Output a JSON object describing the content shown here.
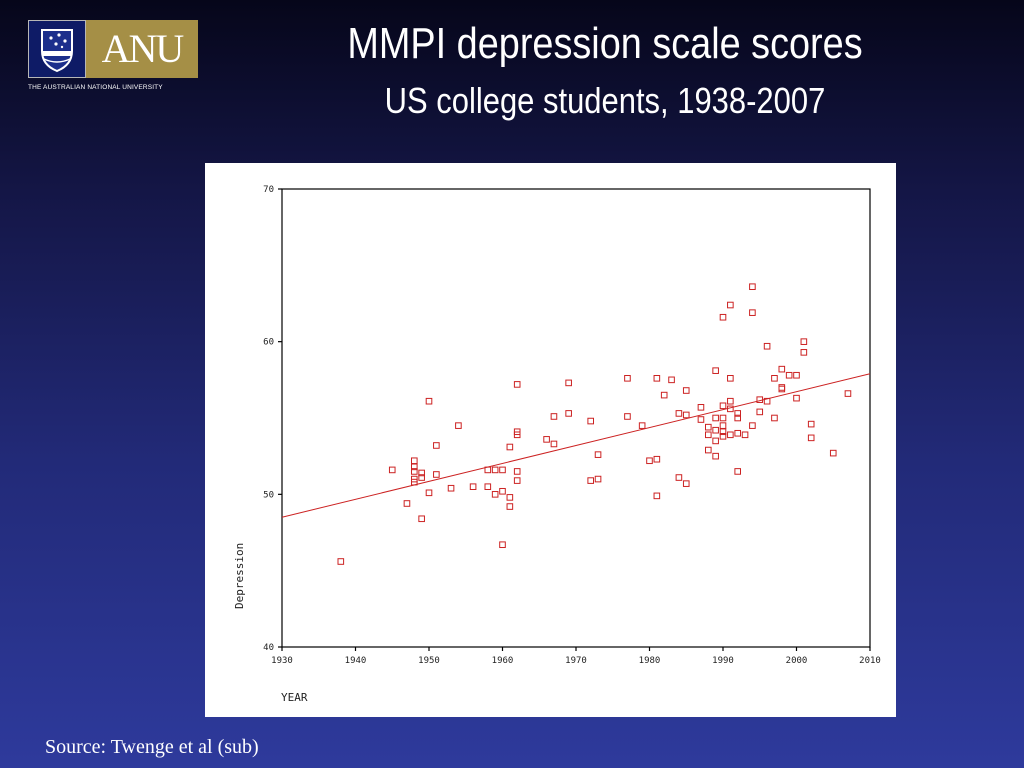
{
  "logo": {
    "wordmark": "ANU",
    "tagline": "THE AUSTRALIAN NATIONAL UNIVERSITY"
  },
  "slide": {
    "title": "MMPI depression scale scores",
    "subtitle": "US college students, 1938-2007",
    "source": "Source: Twenge et al (sub)"
  },
  "colors": {
    "background_top": "#06061a",
    "background_bottom": "#2e3a9c",
    "logo_gold": "#a58f46",
    "logo_navy": "#0e1b66",
    "marker": "#cc2222",
    "trend_line": "#cc2222"
  },
  "chart_data": {
    "type": "scatter",
    "xlabel": "YEAR",
    "ylabel": "Depression",
    "xlim": [
      1930,
      2010
    ],
    "ylim": [
      40,
      70
    ],
    "xticks": [
      "1930",
      "1940",
      "1950",
      "1960",
      "1970",
      "1980",
      "1990",
      "2000",
      "2010"
    ],
    "yticks": [
      "40",
      "50",
      "60",
      "70"
    ],
    "grid": false,
    "marker": "hollow-square",
    "trend_line": {
      "x": [
        1930,
        2010
      ],
      "y": [
        48.5,
        57.9
      ]
    },
    "points": [
      [
        1938,
        45.6
      ],
      [
        1945,
        51.6
      ],
      [
        1947,
        49.4
      ],
      [
        1948,
        52.2
      ],
      [
        1948,
        51.8
      ],
      [
        1948,
        51.0
      ],
      [
        1948,
        50.8
      ],
      [
        1948,
        51.5
      ],
      [
        1949,
        48.4
      ],
      [
        1949,
        51.4
      ],
      [
        1949,
        51.1
      ],
      [
        1950,
        56.1
      ],
      [
        1950,
        50.1
      ],
      [
        1951,
        53.2
      ],
      [
        1951,
        51.3
      ],
      [
        1953,
        50.4
      ],
      [
        1954,
        54.5
      ],
      [
        1956,
        50.5
      ],
      [
        1958,
        51.6
      ],
      [
        1958,
        50.5
      ],
      [
        1959,
        51.6
      ],
      [
        1959,
        50.0
      ],
      [
        1960,
        51.6
      ],
      [
        1960,
        50.2
      ],
      [
        1960,
        46.7
      ],
      [
        1961,
        53.1
      ],
      [
        1961,
        49.8
      ],
      [
        1961,
        49.2
      ],
      [
        1962,
        57.2
      ],
      [
        1962,
        54.1
      ],
      [
        1962,
        53.9
      ],
      [
        1962,
        51.5
      ],
      [
        1962,
        50.9
      ],
      [
        1966,
        53.6
      ],
      [
        1967,
        55.1
      ],
      [
        1967,
        53.3
      ],
      [
        1969,
        57.3
      ],
      [
        1969,
        55.3
      ],
      [
        1972,
        54.8
      ],
      [
        1972,
        50.9
      ],
      [
        1973,
        52.6
      ],
      [
        1973,
        51.0
      ],
      [
        1977,
        57.6
      ],
      [
        1977,
        55.1
      ],
      [
        1979,
        54.5
      ],
      [
        1980,
        52.2
      ],
      [
        1981,
        57.6
      ],
      [
        1981,
        52.3
      ],
      [
        1981,
        49.9
      ],
      [
        1982,
        56.5
      ],
      [
        1983,
        57.5
      ],
      [
        1984,
        55.3
      ],
      [
        1984,
        51.1
      ],
      [
        1985,
        56.8
      ],
      [
        1985,
        55.2
      ],
      [
        1985,
        50.7
      ],
      [
        1987,
        55.7
      ],
      [
        1987,
        54.9
      ],
      [
        1988,
        54.4
      ],
      [
        1988,
        53.9
      ],
      [
        1988,
        52.9
      ],
      [
        1989,
        58.1
      ],
      [
        1989,
        55.0
      ],
      [
        1989,
        54.2
      ],
      [
        1989,
        53.5
      ],
      [
        1989,
        52.5
      ],
      [
        1990,
        61.6
      ],
      [
        1990,
        55.8
      ],
      [
        1990,
        55.0
      ],
      [
        1990,
        54.5
      ],
      [
        1990,
        54.1
      ],
      [
        1990,
        53.8
      ],
      [
        1991,
        62.4
      ],
      [
        1991,
        57.6
      ],
      [
        1991,
        56.1
      ],
      [
        1991,
        55.6
      ],
      [
        1991,
        53.9
      ],
      [
        1992,
        55.3
      ],
      [
        1992,
        55.0
      ],
      [
        1992,
        54.0
      ],
      [
        1992,
        51.5
      ],
      [
        1993,
        53.9
      ],
      [
        1994,
        63.6
      ],
      [
        1994,
        61.9
      ],
      [
        1994,
        54.5
      ],
      [
        1995,
        56.2
      ],
      [
        1995,
        55.4
      ],
      [
        1996,
        59.7
      ],
      [
        1996,
        56.1
      ],
      [
        1997,
        57.6
      ],
      [
        1997,
        55.0
      ],
      [
        1998,
        58.2
      ],
      [
        1998,
        57.0
      ],
      [
        1998,
        56.9
      ],
      [
        1999,
        57.8
      ],
      [
        2000,
        57.8
      ],
      [
        2000,
        56.3
      ],
      [
        2001,
        60.0
      ],
      [
        2001,
        59.3
      ],
      [
        2002,
        54.6
      ],
      [
        2002,
        53.7
      ],
      [
        2005,
        52.7
      ],
      [
        2007,
        56.6
      ]
    ]
  }
}
